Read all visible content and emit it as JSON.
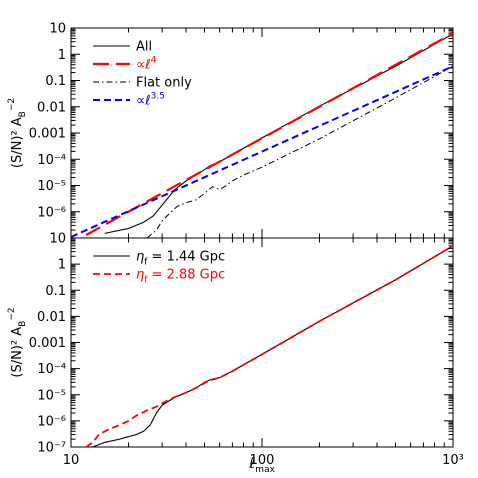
{
  "chart_data": [
    {
      "type": "line",
      "panel": "top",
      "xscale": "log",
      "yscale": "log",
      "xlim": [
        10,
        1000
      ],
      "ylim": [
        1e-07,
        10
      ],
      "ylabel": "(S/N)² Aʙ⁻²",
      "ylabel_parts": {
        "main": "(S/N)² A",
        "sub": "B",
        "sup": "−2"
      },
      "y_ticks": [
        {
          "value": 10,
          "label": "10"
        },
        {
          "value": 1,
          "label": "1"
        },
        {
          "value": 0.1,
          "label": "0.1"
        },
        {
          "value": 0.01,
          "label": "0.01"
        },
        {
          "value": 0.001,
          "label": "0.001"
        },
        {
          "value": 0.0001,
          "label": "10⁻⁴"
        },
        {
          "value": 1e-05,
          "label": "10⁻⁵"
        },
        {
          "value": 1e-06,
          "label": "10⁻⁶"
        }
      ],
      "legend_placement": "top-left",
      "series": [
        {
          "name": "All",
          "style": "solid",
          "color": "#000000",
          "width": 1.1,
          "x": [
            15,
            20,
            24,
            27,
            30,
            35,
            40,
            45,
            50,
            53,
            56,
            60,
            70,
            100,
            200,
            500,
            1000
          ],
          "y": [
            1.5e-07,
            2.3e-07,
            4e-07,
            7e-07,
            1.8e-06,
            7e-06,
            1.5e-05,
            2.5e-05,
            4e-05,
            5.5e-05,
            6.5e-05,
            8e-05,
            0.00015,
            0.00065,
            0.0105,
            0.35,
            6
          ]
        },
        {
          "name": "∝ℓ⁴",
          "name_parts": {
            "main": "∝ℓ",
            "sup": "4"
          },
          "style": "longdash",
          "color": "#ff0000",
          "width": 2.2,
          "x": [
            12,
            1000
          ],
          "y": [
            1.3e-07,
            6.3
          ]
        },
        {
          "name": "Flat only",
          "style": "dashdot",
          "color": "#000000",
          "width": 1.0,
          "x": [
            25,
            28,
            30,
            33,
            36,
            40,
            45,
            50,
            55,
            60,
            65,
            70,
            80,
            100,
            200,
            500,
            1000
          ],
          "y": [
            1e-07,
            2e-07,
            4.5e-07,
            9e-07,
            1.6e-06,
            2.2e-06,
            2.8e-06,
            5e-06,
            9e-06,
            7e-06,
            1e-05,
            1.5e-05,
            2.5e-05,
            5e-05,
            0.0006,
            0.0215,
            0.35
          ]
        },
        {
          "name": "∝ℓ³·⁵",
          "name_parts": {
            "main": "∝ℓ",
            "sup": "3.5"
          },
          "style": "dash",
          "color": "#0000ff",
          "width": 2.0,
          "x": [
            10,
            1000
          ],
          "y": [
            1.1e-07,
            0.35
          ]
        }
      ]
    },
    {
      "type": "line",
      "panel": "bottom",
      "xscale": "log",
      "yscale": "log",
      "xlim": [
        10,
        1000
      ],
      "ylim": [
        1e-07,
        10
      ],
      "xlabel": "ℓmax",
      "xlabel_parts": {
        "main": "ℓ",
        "sub": "max"
      },
      "ylabel": "(S/N)² Aʙ⁻²",
      "ylabel_parts": {
        "main": "(S/N)² A",
        "sub": "B",
        "sup": "−2"
      },
      "x_ticks": [
        {
          "value": 10,
          "label": "10"
        },
        {
          "value": 100,
          "label": "100"
        },
        {
          "value": 1000,
          "label": "10³"
        }
      ],
      "y_ticks": [
        {
          "value": 10,
          "label": "10"
        },
        {
          "value": 1,
          "label": "1"
        },
        {
          "value": 0.1,
          "label": "0.1"
        },
        {
          "value": 0.01,
          "label": "0.01"
        },
        {
          "value": 0.001,
          "label": "0.001"
        },
        {
          "value": 0.0001,
          "label": "10⁻⁴"
        },
        {
          "value": 1e-05,
          "label": "10⁻⁵"
        },
        {
          "value": 1e-06,
          "label": "10⁻⁶"
        },
        {
          "value": 1e-07,
          "label": "10⁻⁷"
        }
      ],
      "legend_placement": "top-left",
      "series": [
        {
          "name": "ηf = 1.44 Gpc",
          "name_parts": {
            "main": "η",
            "sub": "f",
            "rest": " = 1.44 Gpc"
          },
          "style": "solid",
          "color": "#000000",
          "width": 1.1,
          "x": [
            13,
            15,
            18,
            20,
            22,
            24,
            26,
            28,
            30,
            35,
            40,
            45,
            50,
            55,
            60,
            70,
            100,
            200,
            500,
            1000
          ],
          "y": [
            1e-07,
            1.5e-07,
            2e-07,
            2.5e-07,
            3e-07,
            4e-07,
            7e-07,
            2e-06,
            4e-06,
            8e-06,
            1.2e-05,
            1.8e-05,
            3e-05,
            4e-05,
            4.5e-05,
            8e-05,
            0.00035,
            0.0065,
            0.25,
            5
          ]
        },
        {
          "name": "ηf = 2.88 Gpc",
          "name_parts": {
            "main": "η",
            "sub": "f",
            "rest": " = 2.88 Gpc"
          },
          "style": "dash",
          "color": "#ff0000",
          "width": 1.8,
          "x": [
            12,
            13,
            14,
            16,
            18,
            20,
            22,
            25,
            28,
            32,
            36,
            40,
            45,
            50,
            55,
            60,
            70,
            100,
            200,
            500,
            1000
          ],
          "y": [
            1e-07,
            1.5e-07,
            3e-07,
            5e-07,
            7e-07,
            1e-06,
            1.6e-06,
            2.5e-06,
            3.5e-06,
            6e-06,
            9e-06,
            1.2e-05,
            1.8e-05,
            2.8e-05,
            3.8e-05,
            4.5e-05,
            8e-05,
            0.00035,
            0.0065,
            0.25,
            5
          ]
        }
      ]
    }
  ]
}
